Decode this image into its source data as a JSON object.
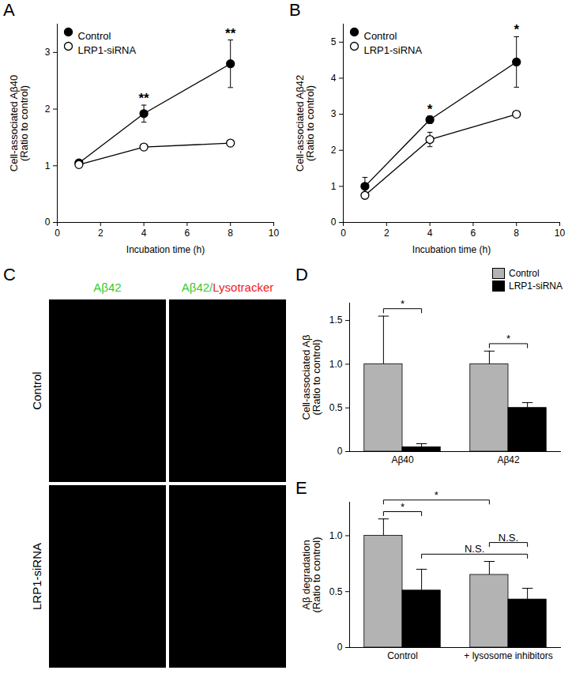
{
  "chart_data": [
    {
      "type": "line",
      "title": "A",
      "x_label": "Incubation time (h)",
      "y_label": "Cell-associated Aβ40\n(Ratio to control)",
      "x": [
        1,
        4,
        8
      ],
      "series": [
        {
          "name": "Control",
          "color": "#000000",
          "marker": "circle",
          "values": [
            1.05,
            1.92,
            2.8
          ],
          "errors": [
            0.05,
            0.15,
            0.42
          ]
        },
        {
          "name": "LRP1-siRNA",
          "color": "#000000",
          "marker": "circle-open",
          "values": [
            1.02,
            1.33,
            1.4
          ],
          "errors": [
            0.03,
            0.05,
            0.05
          ]
        }
      ],
      "xlim": [
        0,
        10
      ],
      "xticks": [
        0,
        2,
        4,
        6,
        8,
        10
      ],
      "ylim": [
        0,
        3.5
      ],
      "yticks": [
        0,
        1,
        2,
        3
      ],
      "legend": "top-left",
      "annotations": [
        {
          "text": "**",
          "x": 4
        },
        {
          "text": "**",
          "x": 8
        }
      ]
    },
    {
      "type": "line",
      "title": "B",
      "x_label": "Incubation time (h)",
      "y_label": "Cell-associated Aβ42\n(Ratio to control)",
      "x": [
        1,
        4,
        8
      ],
      "series": [
        {
          "name": "Control",
          "color": "#000000",
          "marker": "circle",
          "values": [
            1.0,
            2.85,
            4.45
          ],
          "errors": [
            0.25,
            0.1,
            0.7
          ]
        },
        {
          "name": "LRP1-siRNA",
          "color": "#000000",
          "marker": "circle-open",
          "values": [
            0.75,
            2.3,
            3.0
          ],
          "errors": [
            0.05,
            0.2,
            0.05
          ]
        }
      ],
      "xlim": [
        0,
        10
      ],
      "xticks": [
        0,
        2,
        4,
        6,
        8,
        10
      ],
      "ylim": [
        0,
        5.5
      ],
      "yticks": [
        0,
        1,
        2,
        3,
        4,
        5
      ],
      "legend": "top-left",
      "annotations": [
        {
          "text": "*",
          "x": 4
        },
        {
          "text": "*",
          "x": 8
        }
      ]
    },
    {
      "type": "image",
      "title": "C",
      "columns": [
        [
          "Aβ42"
        ],
        [
          "Aβ42/",
          "Lysotracker"
        ]
      ],
      "colors": [
        "#33cc33",
        "#ee2222"
      ],
      "rows": [
        "Control",
        "LRP1-siRNA"
      ]
    },
    {
      "type": "bar",
      "title": "D",
      "y_label": "Cell-associated Aβ\n(Ratio to control)",
      "categories": [
        "Aβ40",
        "Aβ42"
      ],
      "series": [
        {
          "name": "Control",
          "color": "#b3b3b3",
          "values": [
            1.0,
            1.0
          ],
          "errors": [
            0.55,
            0.15
          ]
        },
        {
          "name": "LRP1-siRNA",
          "color": "#000000",
          "values": [
            0.05,
            0.5
          ],
          "errors": [
            0.04,
            0.06
          ]
        }
      ],
      "ylim": [
        0,
        1.7
      ],
      "yticks": [
        0,
        0.5,
        {
          "value": 1,
          "label": "1.0"
        },
        1.5
      ],
      "legend": "top-right",
      "annotations": [
        {
          "text": "*",
          "from": [
            "Aβ40",
            "Control"
          ],
          "to": [
            "Aβ40",
            "LRP1-siRNA"
          ]
        },
        {
          "text": "*",
          "from": [
            "Aβ42",
            "Control"
          ],
          "to": [
            "Aβ42",
            "LRP1-siRNA"
          ]
        }
      ]
    },
    {
      "type": "bar",
      "title": "E",
      "y_label": "Aβ degradation\n(Ratio to control)",
      "categories": [
        "Control",
        "+ lysosome inhibitors"
      ],
      "series": [
        {
          "name": "Control",
          "color": "#b3b3b3",
          "values": [
            1.0,
            0.65
          ],
          "errors": [
            0.15,
            0.12
          ]
        },
        {
          "name": "LRP1-siRNA",
          "color": "#000000",
          "values": [
            0.51,
            0.43
          ],
          "errors": [
            0.19,
            0.1
          ]
        }
      ],
      "ylim": [
        0,
        1.3
      ],
      "yticks": [
        0,
        0.5,
        {
          "value": 1,
          "label": "1.0"
        }
      ],
      "annotations": [
        {
          "text": "*",
          "from": [
            "Control",
            "Control"
          ],
          "to": [
            "Control",
            "LRP1-siRNA"
          ]
        },
        {
          "text": "*",
          "from": [
            "Control",
            "Control"
          ],
          "to": [
            "+ lysosome inhibitors",
            "Control"
          ]
        },
        {
          "text": "N.S.",
          "from": [
            "Control",
            "LRP1-siRNA"
          ],
          "to": [
            "+ lysosome inhibitors",
            "LRP1-siRNA"
          ]
        },
        {
          "text": "N.S.",
          "from": [
            "+ lysosome inhibitors",
            "Control"
          ],
          "to": [
            "+ lysosome inhibitors",
            "LRP1-siRNA"
          ]
        }
      ]
    }
  ]
}
